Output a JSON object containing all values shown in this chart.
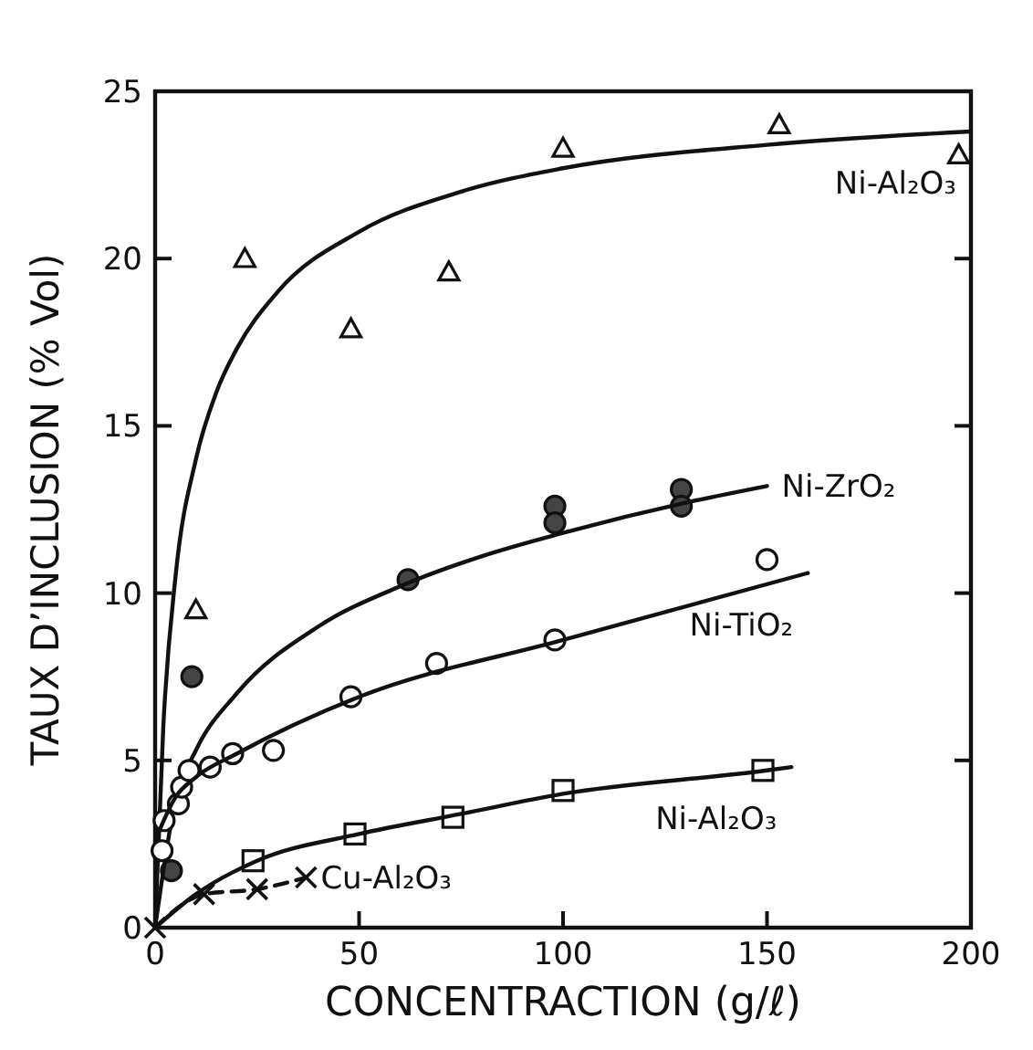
{
  "chart_data": {
    "type": "scatter",
    "xlabel": "CONCENTRACTION (g/ℓ)",
    "ylabel": "TAUX D’INCLUSION (% Vol)",
    "xlim": [
      0,
      200
    ],
    "ylim": [
      0,
      25
    ],
    "xticks": [
      0,
      50,
      100,
      150,
      200
    ],
    "yticks": [
      0,
      5,
      10,
      15,
      20,
      25
    ],
    "series": [
      {
        "marker": "triangle",
        "color": "#ffffff",
        "x": [
          10,
          22,
          48,
          72,
          100,
          153,
          197
        ],
        "values": [
          9.5,
          20,
          17.9,
          19.6,
          23.3,
          24,
          23.1
        ]
      },
      {
        "type": "line",
        "name": "Ni-Al₂O₃",
        "marker": "none",
        "color": "#111111",
        "x": [
          0,
          2,
          5,
          10,
          15,
          20,
          30,
          50,
          75,
          100,
          150,
          200
        ],
        "values": [
          0,
          6,
          10.5,
          14,
          16,
          17.3,
          19,
          20.8,
          22,
          22.7,
          23.4,
          23.8
        ]
      },
      {
        "marker": "circle",
        "color": "#444444",
        "x": [
          4,
          9,
          62,
          98,
          98,
          129,
          129
        ],
        "values": [
          1.7,
          7.5,
          10.4,
          12.6,
          12.1,
          13.1,
          12.6
        ]
      },
      {
        "type": "line",
        "name": "Ni-ZrO₂",
        "marker": "none",
        "color": "#111111",
        "x": [
          0,
          5,
          10,
          20,
          40,
          60,
          80,
          100,
          130,
          150
        ],
        "values": [
          0,
          3.8,
          5.3,
          7,
          9,
          10.2,
          11.1,
          11.8,
          12.7,
          13.2
        ]
      },
      {
        "marker": "circle",
        "color": "#ffffff",
        "x": [
          1.7,
          2.2,
          5.7,
          6.5,
          8.3,
          13.5,
          19,
          29,
          48,
          69,
          98,
          150
        ],
        "values": [
          2.3,
          3.2,
          3.7,
          4.2,
          4.7,
          4.8,
          5.2,
          5.3,
          6.9,
          7.9,
          8.6,
          11
        ]
      },
      {
        "type": "line",
        "name": "Ni-TiO₂",
        "marker": "none",
        "color": "#111111",
        "x": [
          0,
          5,
          10,
          20,
          50,
          100,
          160
        ],
        "values": [
          2.6,
          3.9,
          4.5,
          5.2,
          6.9,
          8.6,
          10.6
        ]
      },
      {
        "marker": "square",
        "color": "#ffffff",
        "x": [
          24,
          49,
          73,
          100,
          149
        ],
        "values": [
          2,
          2.8,
          3.3,
          4.1,
          4.7
        ]
      },
      {
        "type": "line",
        "name": "Ni-Al₂O₃",
        "marker": "none",
        "color": "#111111",
        "x": [
          0,
          10,
          25,
          50,
          75,
          100,
          150,
          156
        ],
        "values": [
          0,
          1,
          2,
          2.8,
          3.4,
          4,
          4.7,
          4.8
        ]
      },
      {
        "type": "line",
        "name": "Cu-Al₂O₃",
        "marker": "cross",
        "line_style": "dashed",
        "color": "#111111",
        "x": [
          0,
          12,
          25,
          37
        ],
        "values": [
          0,
          1,
          1.15,
          1.5
        ]
      }
    ]
  }
}
